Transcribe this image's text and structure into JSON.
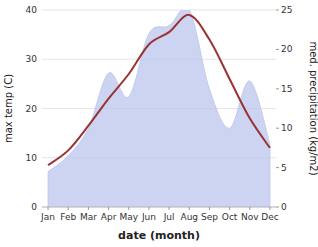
{
  "chart_data": {
    "type": "line",
    "categories": [
      "Jan",
      "Feb",
      "Mar",
      "Apr",
      "May",
      "Jun",
      "Jul",
      "Aug",
      "Sep",
      "Oct",
      "Nov",
      "Dec"
    ],
    "xlabel": "date (month)",
    "ylabel": "max temp (C)",
    "y2label": "med. precipitation (kg/m2)",
    "ylim": [
      0,
      40
    ],
    "yticks": [
      0,
      10,
      20,
      30,
      40
    ],
    "y2lim": [
      0,
      25
    ],
    "y2ticks": [
      0,
      5,
      10,
      15,
      20,
      25
    ],
    "grid": true,
    "series": [
      {
        "type": "area",
        "axis": "y2",
        "color": "#bbc5ed",
        "values": [
          4.5,
          6.5,
          10.0,
          17.0,
          14.0,
          22.0,
          23.0,
          25.0,
          15.0,
          10.0,
          16.0,
          8.0
        ]
      },
      {
        "type": "line",
        "color": "#993333",
        "values": [
          8.5,
          11.5,
          16.5,
          22.0,
          27.0,
          33.0,
          35.5,
          39.0,
          34.0,
          26.0,
          18.0,
          12.0
        ]
      }
    ]
  }
}
